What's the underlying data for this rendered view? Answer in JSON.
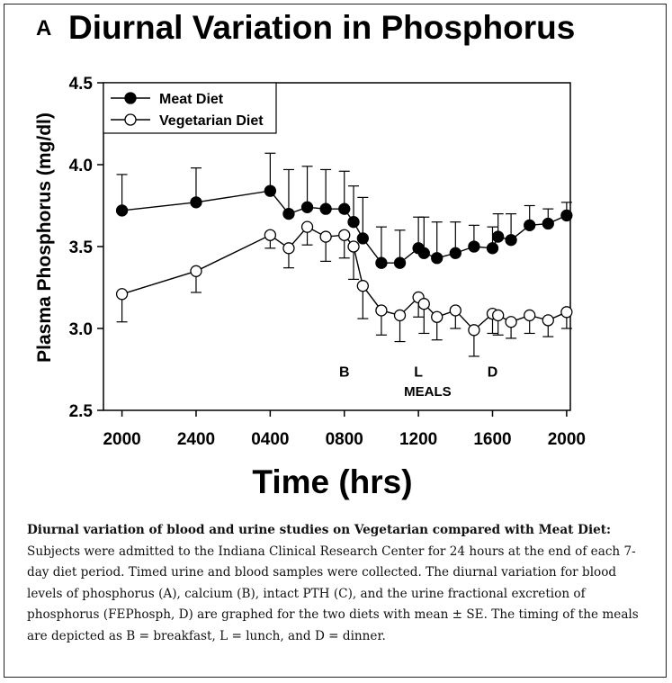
{
  "panel_letter": "A",
  "caption": {
    "title": "Diurnal variation of blood and urine studies on Vegetarian compared with Meat Diet:",
    "body": "Subjects were admitted to the Indiana Clinical Research Center for 24 hours at the end of each 7-day diet period. Timed urine and blood samples were collected. The diurnal variation for blood levels of phosphorus (A), calcium (B), intact PTH (C), and the urine fractional excretion of phosphorus (FEPhosph, D) are graphed for the two diets with mean ± SE. The timing of the meals are depicted as B = breakfast, L = lunch, and D = dinner."
  },
  "chart_data": {
    "type": "line",
    "title": "Diurnal Variation in Phosphorus",
    "xlabel": "Time (hrs)",
    "ylabel": "Plasma Phosphorus (mg/dl)",
    "xlim": [
      -1,
      24.2
    ],
    "ylim": [
      2.5,
      4.5
    ],
    "x_ticks": [
      {
        "x": 0,
        "label": "2000"
      },
      {
        "x": 4,
        "label": "2400"
      },
      {
        "x": 8,
        "label": "0400"
      },
      {
        "x": 12,
        "label": "0800"
      },
      {
        "x": 16,
        "label": "1200"
      },
      {
        "x": 20,
        "label": "1600"
      },
      {
        "x": 24,
        "label": "2000"
      }
    ],
    "y_ticks": [
      {
        "y": 2.5,
        "label": "2.5"
      },
      {
        "y": 3.0,
        "label": "3.0"
      },
      {
        "y": 3.5,
        "label": "3.5"
      },
      {
        "y": 4.0,
        "label": "4.0"
      },
      {
        "y": 4.5,
        "label": "4.5"
      }
    ],
    "legend_position": "top-left",
    "grid": false,
    "series": [
      {
        "name": "Meat Diet",
        "marker": "filled",
        "x": [
          0,
          4,
          8,
          9,
          10,
          11,
          12,
          12.5,
          13,
          14,
          15,
          16,
          16.3,
          17,
          18,
          19,
          20,
          20.3,
          21,
          22,
          23,
          24
        ],
        "y": [
          3.72,
          3.77,
          3.84,
          3.7,
          3.74,
          3.73,
          3.73,
          3.65,
          3.55,
          3.4,
          3.4,
          3.49,
          3.46,
          3.43,
          3.46,
          3.5,
          3.49,
          3.56,
          3.54,
          3.63,
          3.64,
          3.69
        ],
        "err": [
          0.22,
          0.21,
          0.23,
          0.27,
          0.25,
          0.24,
          0.23,
          0.22,
          0.25,
          0.22,
          0.2,
          0.19,
          0.22,
          0.22,
          0.19,
          0.13,
          0.13,
          0.14,
          0.16,
          0.12,
          0.09,
          0.08
        ]
      },
      {
        "name": "Vegetarian Diet",
        "marker": "open",
        "x": [
          0,
          4,
          8,
          9,
          10,
          11,
          12,
          12.5,
          13,
          14,
          15,
          16,
          16.3,
          17,
          18,
          19,
          20,
          20.3,
          21,
          22,
          23,
          24
        ],
        "y": [
          3.21,
          3.35,
          3.57,
          3.49,
          3.62,
          3.56,
          3.57,
          3.5,
          3.26,
          3.11,
          3.08,
          3.19,
          3.15,
          3.07,
          3.11,
          2.99,
          3.09,
          3.08,
          3.04,
          3.08,
          3.05,
          3.1
        ],
        "err": [
          0.17,
          0.13,
          0.08,
          0.12,
          0.11,
          0.15,
          0.14,
          0.2,
          0.2,
          0.15,
          0.16,
          0.12,
          0.18,
          0.14,
          0.11,
          0.16,
          0.12,
          0.12,
          0.1,
          0.11,
          0.1,
          0.1
        ]
      }
    ],
    "annotations": [
      {
        "text": "B",
        "x": 12,
        "y": 2.74
      },
      {
        "text": "L",
        "x": 16,
        "y": 2.74
      },
      {
        "text": "MEALS",
        "x": 16.5,
        "y": 2.62
      },
      {
        "text": "D",
        "x": 20,
        "y": 2.74
      }
    ]
  }
}
